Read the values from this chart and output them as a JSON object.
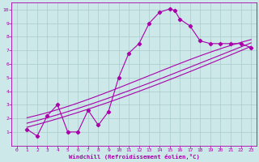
{
  "bg_color": "#cce8e8",
  "line_color": "#aa00aa",
  "grid_color": "#aacccc",
  "xlabel": "Windchill (Refroidissement éolien,°C)",
  "xlim": [
    -0.5,
    23.5
  ],
  "ylim": [
    0,
    10.5
  ],
  "xticks": [
    0,
    1,
    2,
    3,
    4,
    5,
    6,
    7,
    8,
    9,
    10,
    11,
    12,
    13,
    14,
    15,
    16,
    17,
    18,
    19,
    20,
    21,
    22,
    23
  ],
  "yticks": [
    1,
    2,
    3,
    4,
    5,
    6,
    7,
    8,
    9,
    10
  ],
  "jagged_x": [
    1,
    2,
    3,
    4,
    5,
    6,
    7,
    8,
    9,
    10,
    11,
    12,
    13,
    14,
    15,
    15.5,
    16,
    17,
    18,
    19,
    20,
    21,
    22,
    23
  ],
  "jagged_y": [
    1.2,
    0.7,
    2.2,
    3.0,
    1.0,
    1.0,
    2.6,
    1.5,
    2.5,
    5.0,
    6.8,
    7.5,
    9.0,
    9.8,
    10.05,
    9.95,
    9.3,
    8.8,
    7.7,
    7.5,
    7.5,
    7.5,
    7.5,
    7.2
  ],
  "curve1_pts_x": [
    1,
    5,
    9,
    13,
    17,
    21,
    23
  ],
  "curve1_pts_y": [
    1.3,
    2.3,
    3.2,
    4.1,
    5.5,
    6.8,
    7.2
  ],
  "curve2_pts_x": [
    1,
    5,
    9,
    13,
    17,
    21,
    23
  ],
  "curve2_pts_y": [
    1.6,
    2.6,
    3.5,
    4.4,
    5.9,
    7.0,
    7.5
  ],
  "curve3_pts_x": [
    1,
    5,
    9,
    13,
    17,
    21,
    23
  ],
  "curve3_pts_y": [
    2.0,
    3.0,
    3.9,
    5.0,
    6.5,
    7.3,
    7.8
  ]
}
